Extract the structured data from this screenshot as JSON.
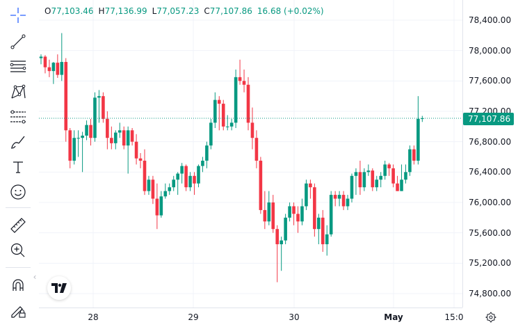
{
  "ohlc": {
    "o_key": "O",
    "o_val": "77,103.46",
    "h_key": "H",
    "h_val": "77,136.99",
    "l_key": "L",
    "l_val": "77,057.23",
    "c_key": "C",
    "c_val": "77,107.86",
    "change": "16.68 (+0.02%)"
  },
  "price_axis": {
    "labels": [
      "78,400.00",
      "78,000.00",
      "77,600.00",
      "77,200.00",
      "76,800.00",
      "76,400.00",
      "76,000.00",
      "75,600.00",
      "75,200.00",
      "74,800.00"
    ],
    "last_price": "77,107.86"
  },
  "time_axis": {
    "labels": [
      "28",
      "29",
      "30",
      "May",
      "15:0"
    ]
  },
  "toolbar": {
    "tools": [
      "crosshair-icon",
      "trend-line-icon",
      "horizontal-lines-icon",
      "pattern-icon",
      "fib-retracement-icon",
      "brush-icon",
      "text-icon",
      "emoji-icon",
      "ruler-icon",
      "zoom-in-icon",
      "magnet-icon",
      "lock-pencil-icon"
    ],
    "collapse_glyph": "‹"
  },
  "colors": {
    "up": "#089981",
    "down": "#f23645",
    "grid": "#f0f3fa",
    "text": "#131722"
  },
  "chart_data": {
    "type": "candlestick",
    "y_range": [
      74800,
      78400
    ],
    "last_price": 77107.86,
    "candles": [
      [
        77900,
        77950,
        77820,
        77920
      ],
      [
        77920,
        77940,
        77700,
        77780
      ],
      [
        77780,
        77880,
        77650,
        77730
      ],
      [
        77730,
        77850,
        77560,
        77840
      ],
      [
        77840,
        77950,
        77640,
        77680
      ],
      [
        77680,
        78230,
        77600,
        77850
      ],
      [
        77850,
        77900,
        76800,
        76950
      ],
      [
        76950,
        76980,
        76450,
        76550
      ],
      [
        76550,
        76950,
        76500,
        76850
      ],
      [
        76850,
        76950,
        76600,
        76850
      ],
      [
        76850,
        76930,
        76400,
        76880
      ],
      [
        76880,
        77080,
        76820,
        77020
      ],
      [
        77020,
        77100,
        76750,
        76850
      ],
      [
        76850,
        77450,
        76800,
        77380
      ],
      [
        77380,
        77480,
        77050,
        77400
      ],
      [
        77400,
        77450,
        77050,
        77100
      ],
      [
        77100,
        77200,
        76700,
        76850
      ],
      [
        76850,
        77000,
        76700,
        76780
      ],
      [
        76780,
        76950,
        76700,
        76920
      ],
      [
        76920,
        77050,
        76850,
        76950
      ],
      [
        76950,
        77000,
        76700,
        76750
      ],
      [
        76750,
        77000,
        76380,
        76950
      ],
      [
        76950,
        76980,
        76750,
        76800
      ],
      [
        76800,
        76900,
        76500,
        76580
      ],
      [
        76580,
        76650,
        76450,
        76550
      ],
      [
        76550,
        76700,
        76100,
        76150
      ],
      [
        76150,
        76350,
        76100,
        76300
      ],
      [
        76300,
        76350,
        75980,
        76050
      ],
      [
        76050,
        76250,
        75650,
        75830
      ],
      [
        75830,
        76150,
        75800,
        76080
      ],
      [
        76080,
        76250,
        76050,
        76150
      ],
      [
        76150,
        76250,
        76100,
        76200
      ],
      [
        76200,
        76350,
        76150,
        76300
      ],
      [
        76300,
        76400,
        76100,
        76380
      ],
      [
        76380,
        76520,
        76250,
        76480
      ],
      [
        76480,
        76500,
        76150,
        76200
      ],
      [
        76200,
        76400,
        76150,
        76350
      ],
      [
        76350,
        76400,
        76100,
        76250
      ],
      [
        76250,
        76500,
        76200,
        76480
      ],
      [
        76480,
        76600,
        76400,
        76550
      ],
      [
        76550,
        76800,
        76450,
        76750
      ],
      [
        76750,
        77100,
        76700,
        77050
      ],
      [
        77050,
        77450,
        76980,
        77350
      ],
      [
        77350,
        77400,
        76950,
        77300
      ],
      [
        77300,
        77350,
        76950,
        77000
      ],
      [
        77000,
        77150,
        76950,
        77000
      ],
      [
        77000,
        77100,
        76950,
        77050
      ],
      [
        77050,
        77750,
        76980,
        77650
      ],
      [
        77650,
        77880,
        77550,
        77600
      ],
      [
        77600,
        77750,
        77450,
        77550
      ],
      [
        77550,
        77650,
        76950,
        77050
      ],
      [
        77050,
        77250,
        76700,
        76850
      ],
      [
        76850,
        76950,
        76450,
        76550
      ],
      [
        76550,
        76600,
        75850,
        75900
      ],
      [
        75900,
        76150,
        75650,
        75750
      ],
      [
        75750,
        76150,
        75700,
        76000
      ],
      [
        76000,
        76100,
        75600,
        75650
      ],
      [
        75650,
        75700,
        74950,
        75450
      ],
      [
        75450,
        75550,
        75100,
        75500
      ],
      [
        75500,
        75850,
        75450,
        75800
      ],
      [
        75800,
        76000,
        75750,
        75950
      ],
      [
        75950,
        76000,
        75700,
        75850
      ],
      [
        75850,
        75950,
        75600,
        75750
      ],
      [
        75750,
        76050,
        75700,
        75950
      ],
      [
        75950,
        76300,
        75900,
        76250
      ],
      [
        76250,
        76300,
        76050,
        76200
      ],
      [
        76200,
        76250,
        75550,
        75650
      ],
      [
        75650,
        75850,
        75450,
        75800
      ],
      [
        75800,
        75900,
        75350,
        75450
      ],
      [
        75450,
        75700,
        75300,
        75580
      ],
      [
        75580,
        76150,
        75550,
        76100
      ],
      [
        76100,
        76150,
        75950,
        76050
      ],
      [
        76050,
        76150,
        75950,
        76100
      ],
      [
        76100,
        76150,
        75900,
        75950
      ],
      [
        75950,
        76100,
        75900,
        76050
      ],
      [
        76050,
        76380,
        76000,
        76350
      ],
      [
        76350,
        76450,
        76100,
        76400
      ],
      [
        76400,
        76550,
        76100,
        76200
      ],
      [
        76200,
        76450,
        76150,
        76400
      ],
      [
        76400,
        76500,
        76350,
        76420
      ],
      [
        76420,
        76450,
        76150,
        76200
      ],
      [
        76200,
        76350,
        76150,
        76300
      ],
      [
        76300,
        76400,
        76200,
        76350
      ],
      [
        76350,
        76550,
        76300,
        76500
      ],
      [
        76500,
        76520,
        76350,
        76450
      ],
      [
        76450,
        76500,
        76200,
        76250
      ],
      [
        76250,
        76350,
        76150,
        76150
      ],
      [
        76150,
        76500,
        76150,
        76300
      ],
      [
        76300,
        76500,
        76250,
        76400
      ],
      [
        76400,
        76750,
        76350,
        76700
      ],
      [
        76700,
        76750,
        76500,
        76550
      ],
      [
        76550,
        77400,
        76500,
        77100
      ],
      [
        77100,
        77140,
        77060,
        77108
      ]
    ]
  }
}
